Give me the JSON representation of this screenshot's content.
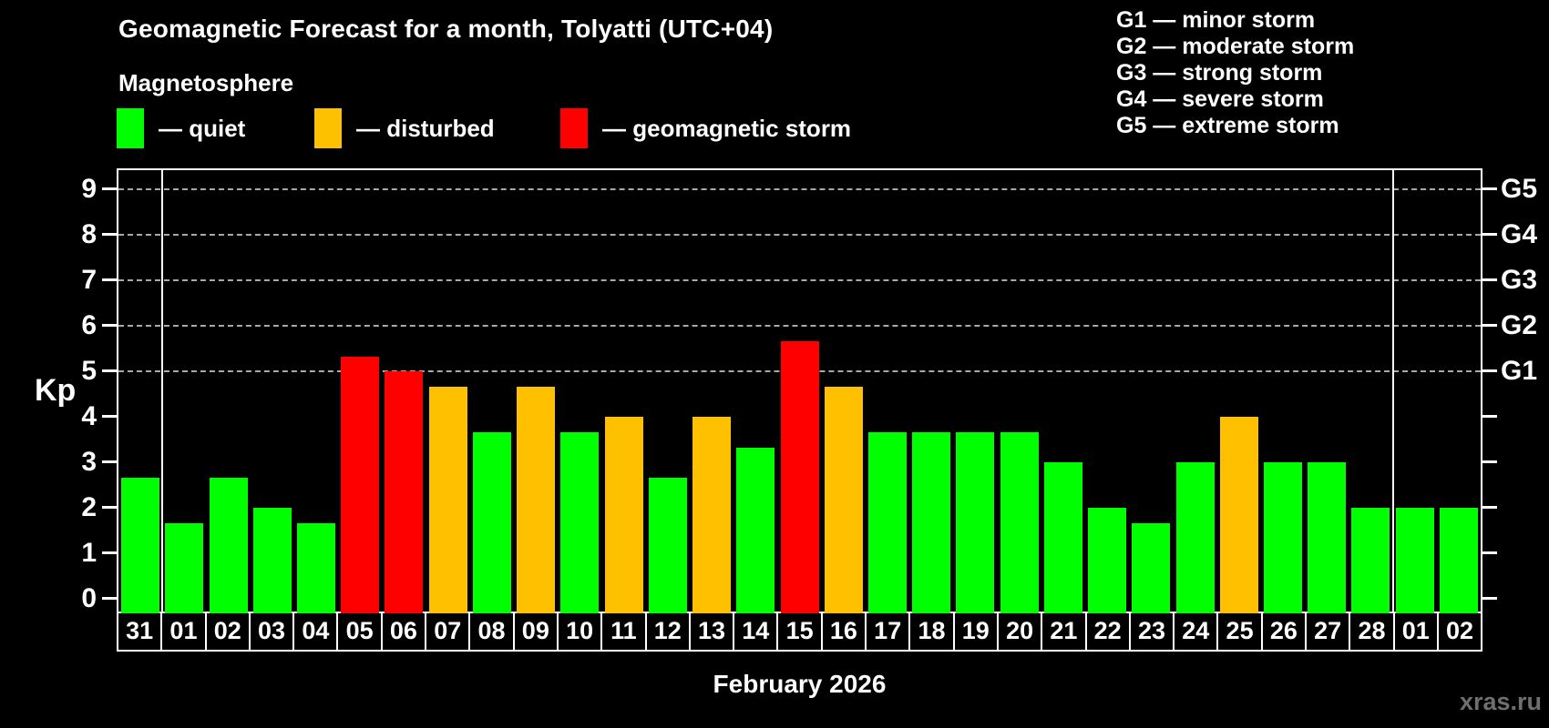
{
  "chart_data": {
    "type": "bar",
    "title": "Geomagnetic Forecast for a month, Tolyatti (UTC+04)",
    "subtitle": "Magnetosphere",
    "xlabel": "February 2026",
    "ylabel": "Kp",
    "ylim": [
      0,
      9.33
    ],
    "grid": "dashed horizontal at Kp 5-9",
    "legend_position": "top-left",
    "y_ticks": [
      0,
      1,
      2,
      3,
      4,
      5,
      6,
      7,
      8,
      9
    ],
    "gridlines_at": [
      5,
      6,
      7,
      8,
      9
    ],
    "right_axis_labels": {
      "5": "G1",
      "6": "G2",
      "7": "G3",
      "8": "G4",
      "9": "G5"
    },
    "colors": {
      "quiet": "#00FF00",
      "disturbed": "#FFC000",
      "storm": "#FF0000"
    },
    "legend": [
      {
        "status": "quiet",
        "label": "— quiet"
      },
      {
        "status": "disturbed",
        "label": "— disturbed"
      },
      {
        "status": "storm",
        "label": "— geomagnetic storm"
      }
    ],
    "g_scale_legend": [
      "G1 — minor storm",
      "G2 — moderate storm",
      "G3 — strong storm",
      "G4 — severe storm",
      "G5 — extreme storm"
    ],
    "categories": [
      "31",
      "01",
      "02",
      "03",
      "04",
      "05",
      "06",
      "07",
      "08",
      "09",
      "10",
      "11",
      "12",
      "13",
      "14",
      "15",
      "16",
      "17",
      "18",
      "19",
      "20",
      "21",
      "22",
      "23",
      "24",
      "25",
      "26",
      "27",
      "28",
      "01",
      "02"
    ],
    "values": [
      2.67,
      1.67,
      2.67,
      2.0,
      1.67,
      5.33,
      5.0,
      4.67,
      3.67,
      4.67,
      3.67,
      4.0,
      2.67,
      4.0,
      3.33,
      5.67,
      4.67,
      3.67,
      3.67,
      3.67,
      3.67,
      3.0,
      2.0,
      1.67,
      3.0,
      4.0,
      3.0,
      3.0,
      2.0,
      2.0,
      2.0
    ],
    "statuses": [
      "quiet",
      "quiet",
      "quiet",
      "quiet",
      "quiet",
      "storm",
      "storm",
      "disturbed",
      "quiet",
      "disturbed",
      "quiet",
      "disturbed",
      "quiet",
      "disturbed",
      "quiet",
      "storm",
      "disturbed",
      "quiet",
      "quiet",
      "quiet",
      "quiet",
      "quiet",
      "quiet",
      "quiet",
      "quiet",
      "disturbed",
      "quiet",
      "quiet",
      "quiet",
      "quiet",
      "quiet"
    ],
    "month_boundaries_after_index": [
      0,
      28
    ]
  },
  "watermark": "xras.ru"
}
